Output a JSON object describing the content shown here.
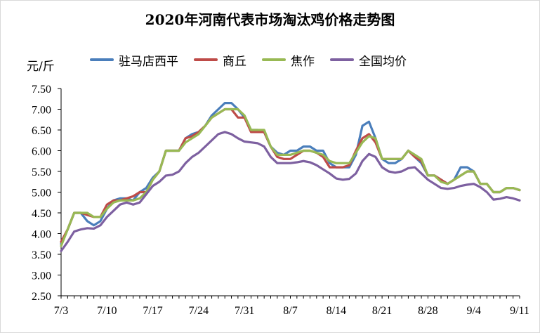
{
  "chart_data": {
    "type": "line",
    "title": "2020年河南代表市场淘汰鸡价格走势图",
    "ylabel": "元/斤",
    "ylim": [
      2.5,
      7.5
    ],
    "yticks": [
      "2.50",
      "3.00",
      "3.50",
      "4.00",
      "4.50",
      "5.00",
      "5.50",
      "6.00",
      "6.50",
      "7.00",
      "7.50"
    ],
    "xtick_labels": [
      "7/3",
      "7/10",
      "7/17",
      "7/24",
      "7/31",
      "8/7",
      "8/14",
      "8/21",
      "8/28",
      "9/4",
      "9/11"
    ],
    "grid": false,
    "legend_position": "top",
    "x_dates": [
      "7/3",
      "7/4",
      "7/5",
      "7/6",
      "7/7",
      "7/8",
      "7/9",
      "7/10",
      "7/11",
      "7/12",
      "7/13",
      "7/14",
      "7/15",
      "7/16",
      "7/17",
      "7/18",
      "7/19",
      "7/20",
      "7/21",
      "7/22",
      "7/23",
      "7/24",
      "7/25",
      "7/26",
      "7/27",
      "7/28",
      "7/29",
      "7/30",
      "7/31",
      "8/1",
      "8/2",
      "8/3",
      "8/4",
      "8/5",
      "8/6",
      "8/7",
      "8/8",
      "8/9",
      "8/10",
      "8/11",
      "8/12",
      "8/13",
      "8/14",
      "8/15",
      "8/16",
      "8/17",
      "8/18",
      "8/19",
      "8/20",
      "8/21",
      "8/22",
      "8/23",
      "8/24",
      "8/25",
      "8/26",
      "8/27",
      "8/28",
      "8/29",
      "8/30",
      "8/31",
      "9/1",
      "9/2",
      "9/3",
      "9/4",
      "9/5",
      "9/6",
      "9/7",
      "9/8",
      "9/9",
      "9/10",
      "9/11"
    ],
    "series": [
      {
        "name": "驻马店西平",
        "color": "#4a7ebb",
        "values": [
          3.75,
          4.1,
          4.5,
          4.5,
          4.3,
          4.2,
          4.3,
          4.6,
          4.8,
          4.85,
          4.85,
          4.8,
          5.0,
          5.1,
          5.35,
          5.5,
          6.0,
          6.0,
          6.0,
          6.3,
          6.4,
          6.45,
          6.6,
          6.85,
          7.0,
          7.15,
          7.15,
          7.0,
          6.8,
          6.5,
          6.5,
          6.45,
          6.1,
          5.95,
          5.9,
          6.0,
          6.0,
          6.1,
          6.1,
          6.0,
          6.0,
          5.7,
          5.6,
          5.6,
          5.6,
          5.9,
          6.6,
          6.7,
          6.3,
          5.8,
          5.7,
          5.7,
          5.8,
          6.0,
          5.85,
          5.7,
          5.4,
          5.4,
          5.3,
          5.2,
          5.3,
          5.6,
          5.6,
          5.5,
          5.2,
          5.2,
          5.0,
          5.0,
          5.1,
          5.1,
          5.05
        ]
      },
      {
        "name": "商丘",
        "color": "#be4b48",
        "values": [
          3.8,
          4.1,
          4.5,
          4.5,
          4.45,
          4.4,
          4.4,
          4.7,
          4.8,
          4.8,
          4.85,
          4.9,
          5.0,
          5.0,
          5.3,
          5.5,
          6.0,
          6.0,
          6.0,
          6.3,
          6.35,
          6.45,
          6.6,
          6.8,
          6.9,
          7.0,
          7.0,
          6.8,
          6.8,
          6.45,
          6.45,
          6.45,
          6.1,
          5.85,
          5.8,
          5.8,
          5.9,
          6.0,
          6.0,
          5.95,
          5.85,
          5.6,
          5.6,
          5.6,
          5.65,
          6.0,
          6.3,
          6.4,
          6.2,
          5.8,
          5.8,
          5.8,
          5.8,
          6.0,
          5.85,
          5.75,
          5.4,
          5.4,
          5.3,
          5.2,
          5.3,
          5.4,
          5.5,
          5.5,
          5.2,
          5.2,
          5.0,
          5.0,
          5.1,
          5.1,
          5.05
        ]
      },
      {
        "name": "焦作",
        "color": "#98b954",
        "values": [
          3.7,
          4.1,
          4.5,
          4.5,
          4.5,
          4.4,
          4.4,
          4.6,
          4.75,
          4.8,
          4.8,
          4.8,
          4.85,
          5.0,
          5.3,
          5.5,
          6.0,
          6.0,
          6.0,
          6.2,
          6.3,
          6.4,
          6.6,
          6.8,
          6.9,
          7.0,
          7.0,
          7.0,
          6.85,
          6.5,
          6.5,
          6.5,
          6.1,
          5.9,
          5.9,
          5.9,
          5.95,
          6.0,
          6.0,
          5.95,
          5.9,
          5.75,
          5.7,
          5.7,
          5.7,
          5.95,
          6.2,
          6.35,
          6.3,
          5.8,
          5.8,
          5.8,
          5.8,
          6.0,
          5.9,
          5.8,
          5.4,
          5.4,
          5.25,
          5.2,
          5.3,
          5.4,
          5.5,
          5.5,
          5.2,
          5.2,
          5.0,
          5.0,
          5.1,
          5.1,
          5.05
        ]
      },
      {
        "name": "全国均价",
        "color": "#7d60a0",
        "values": [
          3.58,
          3.8,
          4.05,
          4.1,
          4.13,
          4.12,
          4.2,
          4.4,
          4.55,
          4.7,
          4.75,
          4.7,
          4.75,
          4.95,
          5.15,
          5.25,
          5.4,
          5.42,
          5.5,
          5.7,
          5.85,
          5.95,
          6.1,
          6.25,
          6.4,
          6.45,
          6.4,
          6.3,
          6.22,
          6.2,
          6.18,
          6.1,
          5.85,
          5.7,
          5.7,
          5.7,
          5.72,
          5.75,
          5.72,
          5.65,
          5.55,
          5.45,
          5.33,
          5.3,
          5.32,
          5.45,
          5.75,
          5.92,
          5.85,
          5.6,
          5.5,
          5.47,
          5.5,
          5.58,
          5.6,
          5.45,
          5.3,
          5.2,
          5.1,
          5.08,
          5.1,
          5.15,
          5.18,
          5.2,
          5.12,
          5.0,
          4.82,
          4.84,
          4.88,
          4.85,
          4.8
        ]
      }
    ]
  }
}
